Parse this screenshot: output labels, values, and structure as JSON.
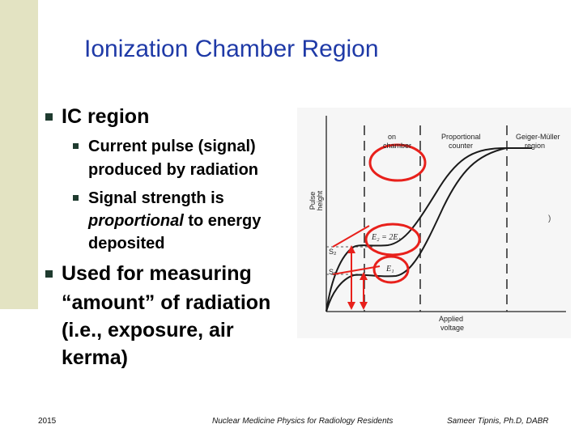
{
  "slide": {
    "title": "Ionization Chamber Region",
    "bullets": {
      "b1": "IC region",
      "b1_sub1_line1": "Current pulse (signal)",
      "b1_sub1_line2": "produced by radiation",
      "b1_sub2_line1": "Signal strength is",
      "b1_sub2_line2_italic": "proportional",
      "b1_sub2_line2_rest": " to energy",
      "b1_sub2_line3": "deposited",
      "b2_line1": "Used for measuring",
      "b2_line2": "“amount” of radiation",
      "b2_line3": "(i.e., exposure, air",
      "b2_line4": "kerma)"
    },
    "footer": {
      "year": "2015",
      "course": "Nuclear Medicine Physics for Radiology Residents",
      "author": "Sameer Tipnis, Ph.D, DABR"
    }
  },
  "diagram": {
    "y_axis_label": [
      "Pulse",
      "height"
    ],
    "x_axis_label": [
      "Applied",
      "voltage"
    ],
    "regions": [
      "on",
      "chamber"
    ],
    "region_proportional": [
      "Proportional",
      "counter"
    ],
    "region_gm": [
      "Geiger-Müller",
      "region"
    ],
    "curve_upper_label": "E₂ = 2E₁",
    "curve_lower_label": "E₁",
    "level_upper": "S₂",
    "level_lower": "S₁",
    "paren": ")",
    "colors": {
      "curve": "#1a1a1a",
      "annotation": "#e8201b"
    }
  }
}
